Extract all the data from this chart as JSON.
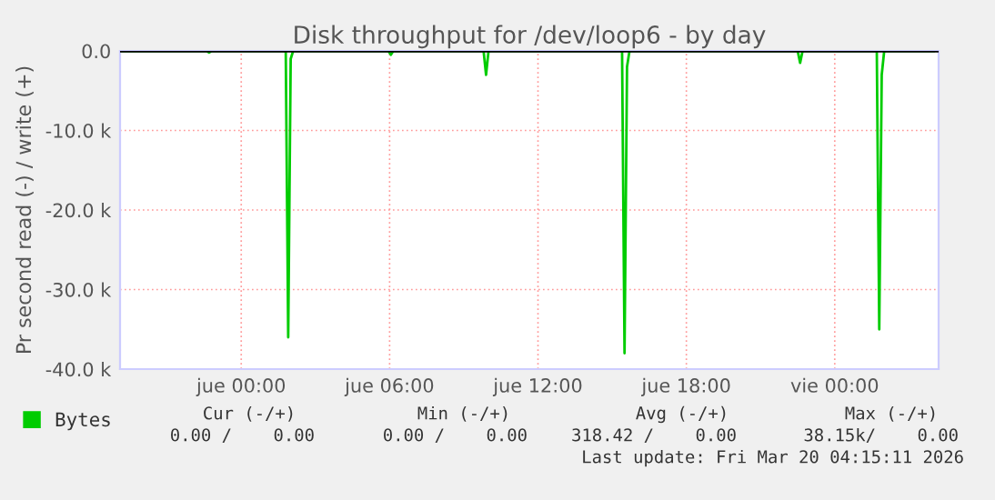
{
  "chart_data": {
    "type": "line",
    "title": "Disk throughput for /dev/loop6 - by day",
    "ylabel": "Pr second read (-) / write (+)",
    "x": [
      "2026-03-18T19:06",
      "2026-03-18T22:36",
      "2026-03-18T22:42",
      "2026-03-18T22:48",
      "2026-03-19T01:48",
      "2026-03-19T01:54",
      "2026-03-19T02:00",
      "2026-03-19T02:06",
      "2026-03-19T05:57",
      "2026-03-19T06:03",
      "2026-03-19T06:09",
      "2026-03-19T09:48",
      "2026-03-19T09:54",
      "2026-03-19T10:00",
      "2026-03-19T15:24",
      "2026-03-19T15:30",
      "2026-03-19T15:36",
      "2026-03-19T15:42",
      "2026-03-19T22:30",
      "2026-03-19T22:36",
      "2026-03-19T22:42",
      "2026-03-20T01:42",
      "2026-03-20T01:48",
      "2026-03-20T01:54",
      "2026-03-20T02:00",
      "2026-03-20T04:00"
    ],
    "series": [
      {
        "name": "Bytes",
        "color": "#00cc00",
        "values": [
          0,
          0,
          -200,
          0,
          0,
          -36000,
          -1000,
          0,
          0,
          -500,
          0,
          0,
          -3000,
          0,
          0,
          -38000,
          -2000,
          0,
          0,
          -1500,
          0,
          0,
          -35000,
          -3000,
          0,
          0
        ]
      }
    ],
    "xlim": [
      "2026-03-18T19:06",
      "2026-03-20T04:12"
    ],
    "xticks": [
      {
        "value": "2026-03-19T00:00",
        "label": "jue 00:00"
      },
      {
        "value": "2026-03-19T06:00",
        "label": "jue 06:00"
      },
      {
        "value": "2026-03-19T12:00",
        "label": "jue 12:00"
      },
      {
        "value": "2026-03-19T18:00",
        "label": "jue 18:00"
      },
      {
        "value": "2026-03-20T00:00",
        "label": "vie 00:00"
      }
    ],
    "ylim": [
      -40000,
      0
    ],
    "yticks": [
      {
        "value": -40000,
        "label": "-40.0 k"
      },
      {
        "value": -30000,
        "label": "-30.0 k"
      },
      {
        "value": -20000,
        "label": "-20.0 k"
      },
      {
        "value": -10000,
        "label": "-10.0 k"
      },
      {
        "value": 0,
        "label": "0.0"
      }
    ],
    "ref_lines": [
      {
        "axis": "y",
        "value": 0,
        "color": "#000000"
      }
    ],
    "grid": true,
    "legend": "bottom left",
    "annotations": [
      "Cur (-/+)",
      "Min (-/+)",
      "Avg (-/+)",
      "Max (-/+)",
      "0.00 /    0.00",
      "0.00 /    0.00",
      "318.42 /    0.00",
      "38.15k/    0.00",
      "Last update: Fri Mar 20 04:15:11 2026"
    ]
  }
}
